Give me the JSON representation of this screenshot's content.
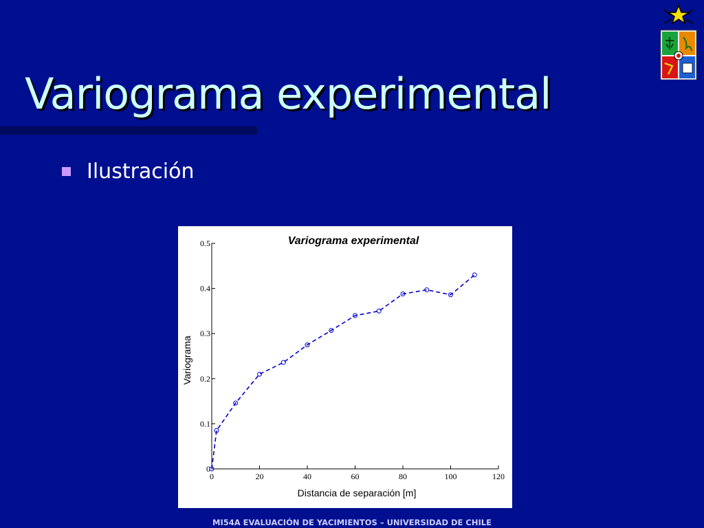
{
  "slide": {
    "title": "Variograma experimental",
    "bullets": [
      "Ilustración"
    ],
    "footer": "MI54A EVALUACIÓN DE YACIMIENTOS – UNIVERSIDAD DE CHILE"
  },
  "logo": {
    "icon": "university-coat-of-arms-icon"
  },
  "colors": {
    "background": "#000f8f",
    "title": "#ccffff",
    "bullet": "#cc99ff",
    "series": "#0000cc"
  },
  "chart_data": {
    "type": "line",
    "title": "Variograma experimental",
    "xlabel": "Distancia de separación [m]",
    "ylabel": "Variograma",
    "xlim": [
      0,
      120
    ],
    "ylim": [
      0,
      0.5
    ],
    "xticks": [
      "0",
      "20",
      "40",
      "60",
      "80",
      "100",
      "120"
    ],
    "yticks": [
      "0",
      "0.1",
      "0.2",
      "0.3",
      "0.4",
      "0.5"
    ],
    "grid": false,
    "line_style": "dashed",
    "marker": "circle",
    "x": [
      0,
      2,
      10,
      20,
      30,
      40,
      50,
      60,
      70,
      80,
      90,
      100,
      110
    ],
    "y": [
      0,
      0.085,
      0.146,
      0.21,
      0.236,
      0.275,
      0.307,
      0.34,
      0.35,
      0.388,
      0.397,
      0.386,
      0.43
    ]
  }
}
